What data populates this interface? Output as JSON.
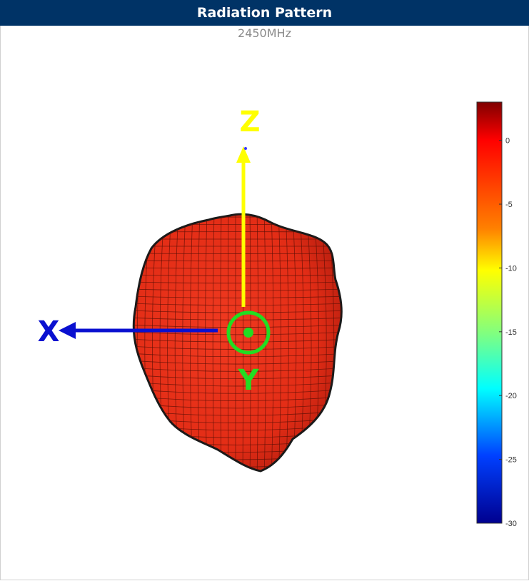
{
  "header": {
    "title": "Radiation Pattern",
    "subtitle": "2450MHz"
  },
  "axes_labels": {
    "x": "X",
    "y": "Y",
    "z": "Z"
  },
  "colors": {
    "header_bg": "#003366",
    "pattern_fill": "#e8301a",
    "x_axis": "#0a10d0",
    "y_axis": "#22dd22",
    "z_axis": "#ffff00"
  },
  "chart_data": {
    "type": "heatmap",
    "title": "Radiation Pattern",
    "subtitle": "2450MHz",
    "colorbar": {
      "colormap": "jet",
      "range": [
        -30,
        3
      ],
      "ticks": [
        0,
        -5,
        -10,
        -15,
        -20,
        -25,
        -30
      ],
      "tick_labels": [
        "0",
        "-5",
        "-10",
        "-15",
        "-20",
        "-25",
        "-30"
      ]
    },
    "view": "3D radiation pattern viewed along Y axis",
    "pattern_level_dB": -1
  }
}
